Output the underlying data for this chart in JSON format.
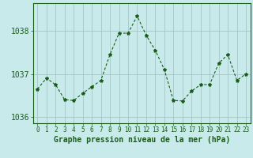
{
  "x": [
    0,
    1,
    2,
    3,
    4,
    5,
    6,
    7,
    8,
    9,
    10,
    11,
    12,
    13,
    14,
    15,
    16,
    17,
    18,
    19,
    20,
    21,
    22,
    23
  ],
  "y": [
    1036.65,
    1036.9,
    1036.75,
    1036.4,
    1036.38,
    1036.55,
    1036.7,
    1036.85,
    1037.45,
    1037.95,
    1037.95,
    1038.35,
    1037.9,
    1037.55,
    1037.1,
    1036.38,
    1036.37,
    1036.6,
    1036.75,
    1036.75,
    1037.25,
    1037.45,
    1036.85,
    1037.0
  ],
  "line_color": "#1a5c1a",
  "marker": "*",
  "marker_size": 3,
  "background_color": "#c8eaea",
  "grid_color": "#9dbfbf",
  "xlabel": "Graphe pression niveau de la mer (hPa)",
  "xlabel_color": "#1a5c1a",
  "xlabel_fontsize": 7,
  "tick_color": "#1a5c1a",
  "xtick_fontsize": 5.5,
  "ytick_fontsize": 7,
  "ytick_labels": [
    "1036",
    "1037",
    "1038"
  ],
  "ytick_values": [
    1036,
    1037,
    1038
  ],
  "ylim": [
    1035.85,
    1038.65
  ],
  "xlim": [
    -0.5,
    23.5
  ]
}
